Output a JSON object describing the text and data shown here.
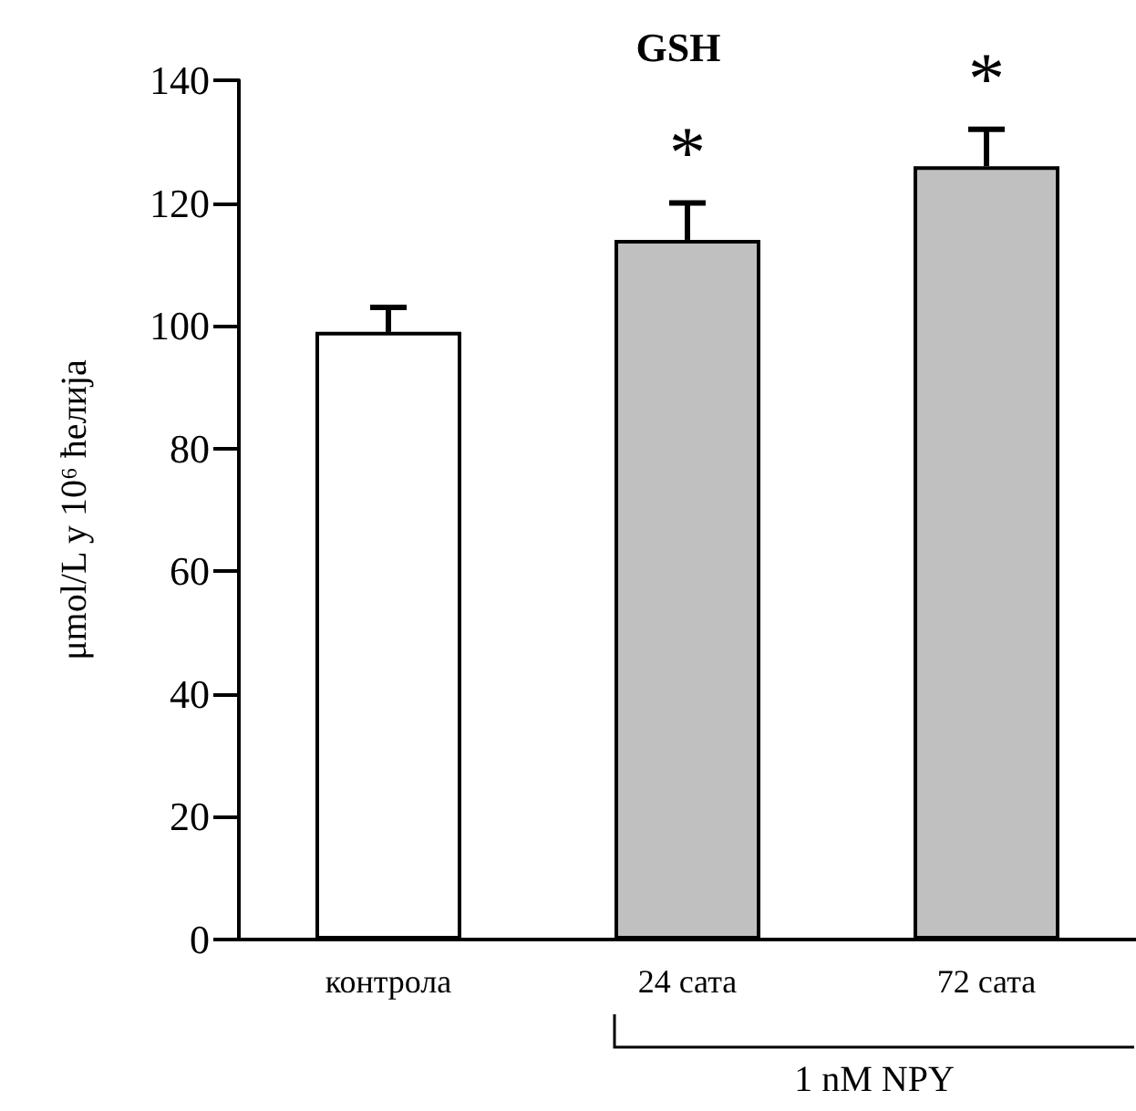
{
  "chart_data": {
    "type": "bar",
    "title": "GSH",
    "ylabel": "μmol/L у 10⁶ ћелија",
    "categories": [
      "контрола",
      "24 сата",
      "72 сата"
    ],
    "values": [
      99,
      114,
      126
    ],
    "errors": [
      [
        99,
        103
      ],
      [
        114,
        120
      ],
      [
        126,
        132
      ]
    ],
    "colors": [
      "#ffffff",
      "#c0c0c0",
      "#c0c0c0"
    ],
    "ylim": [
      0,
      140
    ],
    "yticks": [
      0,
      20,
      40,
      60,
      80,
      100,
      120,
      140
    ],
    "grid": false,
    "annotations": [
      "*",
      "*",
      "1 nM NPY"
    ]
  }
}
